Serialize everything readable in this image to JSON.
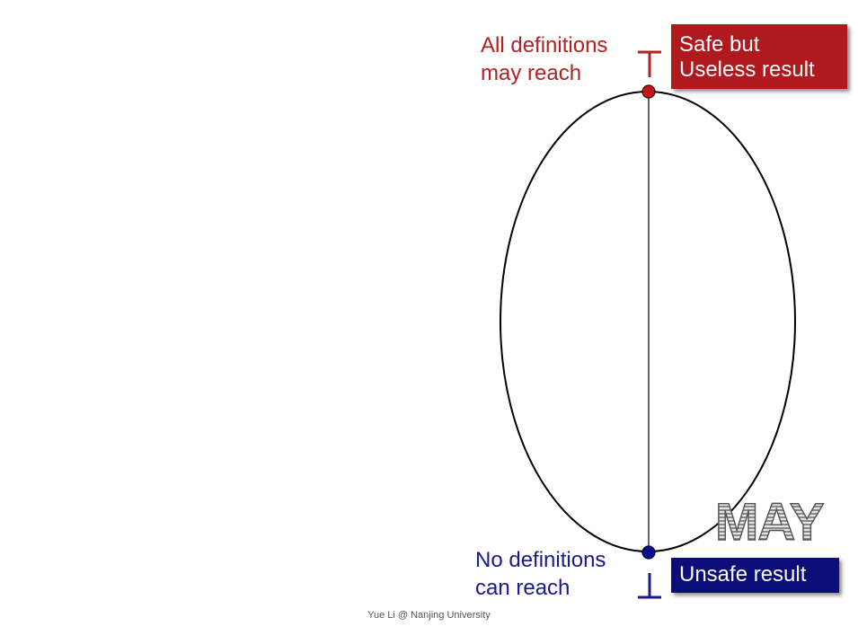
{
  "top": {
    "description_lines": [
      "All definitions",
      "may reach"
    ],
    "box_lines": [
      "Safe but",
      "Useless result"
    ],
    "color": "#b22222",
    "box_color": "#b0191e",
    "symbol": "⊤"
  },
  "bottom": {
    "description_lines": [
      "No definitions",
      "can reach"
    ],
    "box_text": "Unsafe result",
    "color": "#1a1a8c",
    "box_color": "#0d0d7a",
    "symbol": "⊥"
  },
  "badge": "MAY",
  "footer": "Yue Li @ Nanjing University"
}
